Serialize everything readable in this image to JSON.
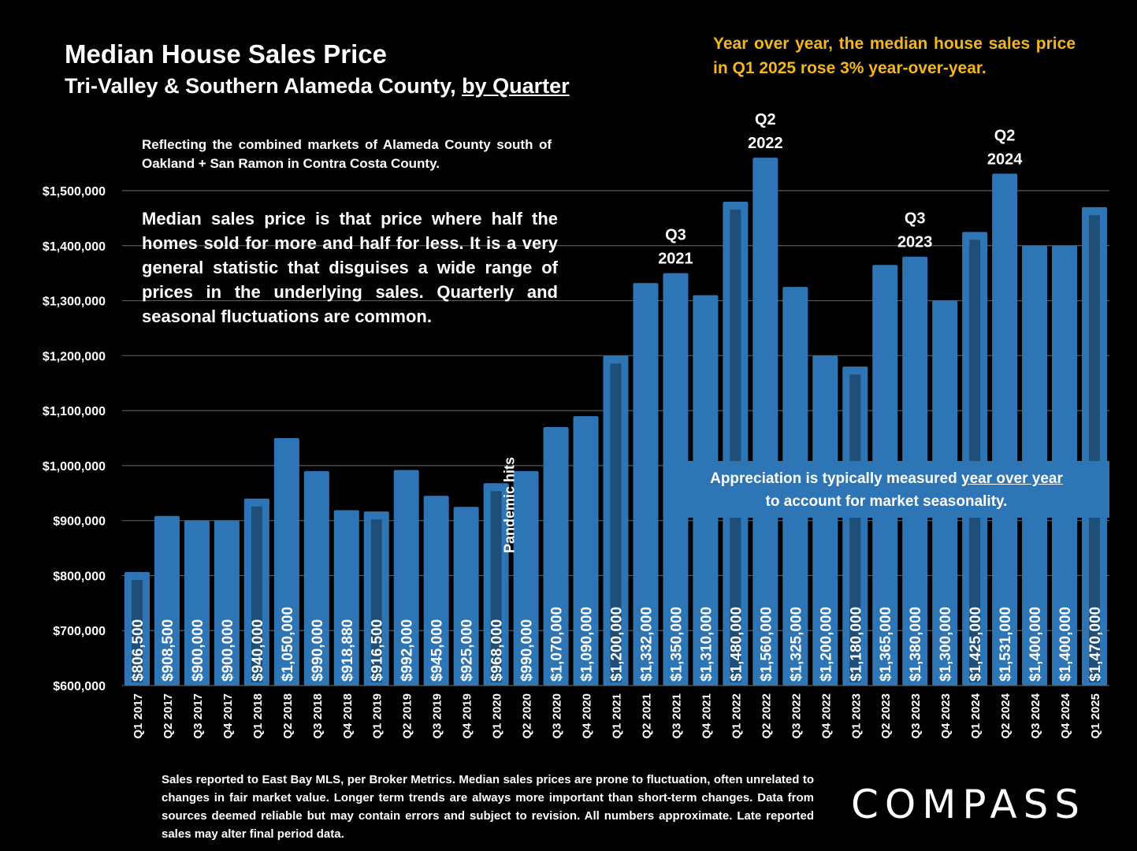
{
  "title": "Median House Sales Price",
  "subtitle_main": "Tri-Valley & Southern Alameda County, ",
  "subtitle_underlined": "by Quarter",
  "headline": "Year over year, the median house sales price in Q1 2025 rose 3% year-over-year.",
  "note_markets": "Reflecting the combined markets of Alameda County south of Oakland + San Ramon in Contra Costa County.",
  "note_median": "Median sales price is that price where half the homes sold for more and half for less. It is a very general statistic that disguises a wide range of prices in the underlying sales. Quarterly and seasonal fluctuations are common.",
  "callout_line1_pre": "Appreciation is typically measured ",
  "callout_line1_u": "year over year",
  "callout_line2": "to account for market seasonality.",
  "footer": "Sales reported to East Bay MLS, per Broker Metrics. Median sales prices are prone to fluctuation, often unrelated to changes in fair market value. Longer term trends are always more important than short-term changes. Data from sources deemed reliable but may contain errors and subject to revision. All numbers approximate. Late reported sales may alter final period data.",
  "logo": "COMPASS",
  "colors": {
    "bar": "#2e75b6",
    "bar_inner": "#1f4e79",
    "headline": "#f5b520",
    "grid": "#595959"
  },
  "chart_data": {
    "type": "bar",
    "categories": [
      "Q1 2017",
      "Q2 2017",
      "Q3 2017",
      "Q4 2017",
      "Q1 2018",
      "Q2 2018",
      "Q3 2018",
      "Q4 2018",
      "Q1 2019",
      "Q2 2019",
      "Q3 2019",
      "Q4 2019",
      "Q1 2020",
      "Q2 2020",
      "Q3 2020",
      "Q4 2020",
      "Q1 2021",
      "Q2 2021",
      "Q3 2021",
      "Q4 2021",
      "Q1 2022",
      "Q2 2022",
      "Q3 2022",
      "Q4 2022",
      "Q1 2023",
      "Q2 2023",
      "Q3 2023",
      "Q4 2023",
      "Q1 2024",
      "Q2 2024",
      "Q3 2024",
      "Q4 2024",
      "Q1 2025"
    ],
    "values": [
      806500,
      908500,
      900000,
      900000,
      940000,
      1050000,
      990000,
      918880,
      916500,
      992000,
      945000,
      925000,
      968000,
      990000,
      1070000,
      1090000,
      1200000,
      1332000,
      1350000,
      1310000,
      1480000,
      1560000,
      1325000,
      1200000,
      1180000,
      1365000,
      1380000,
      1300000,
      1425000,
      1531000,
      1400000,
      1400000,
      1470000
    ],
    "value_labels": [
      "$806,500",
      "$908,500",
      "$900,000",
      "$900,000",
      "$940,000",
      "$1,050,000",
      "$990,000",
      "$918,880",
      "$916,500",
      "$992,000",
      "$945,000",
      "$925,000",
      "$968,000",
      "$990,000",
      "$1,070,000",
      "$1,090,000",
      "$1,200,000",
      "$1,332,000",
      "$1,350,000",
      "$1,310,000",
      "$1,480,000",
      "$1,560,000",
      "$1,325,000",
      "$1,200,000",
      "$1,180,000",
      "$1,365,000",
      "$1,380,000",
      "$1,300,000",
      "$1,425,000",
      "$1,531,000",
      "$1,400,000",
      "$1,400,000",
      "$1,470,000"
    ],
    "highlighted_q1": [
      0,
      4,
      8,
      12,
      16,
      20,
      24,
      28,
      32
    ],
    "ylim": [
      600000,
      1500000
    ],
    "yticks": [
      600000,
      700000,
      800000,
      900000,
      1000000,
      1100000,
      1200000,
      1300000,
      1400000,
      1500000
    ],
    "ytick_labels": [
      "$600,000",
      "$700,000",
      "$800,000",
      "$900,000",
      "$1,000,000",
      "$1,100,000",
      "$1,200,000",
      "$1,300,000",
      "$1,400,000",
      "$1,500,000"
    ],
    "grid": true,
    "annotations": [
      {
        "index": 18,
        "line1": "Q3",
        "line2": "2021"
      },
      {
        "index": 21,
        "line1": "Q2",
        "line2": "2022"
      },
      {
        "index": 26,
        "line1": "Q3",
        "line2": "2023"
      },
      {
        "index": 29,
        "line1": "Q2",
        "line2": "2024"
      }
    ],
    "pandemic_label": "Pandemic hits",
    "pandemic_index": 12
  }
}
